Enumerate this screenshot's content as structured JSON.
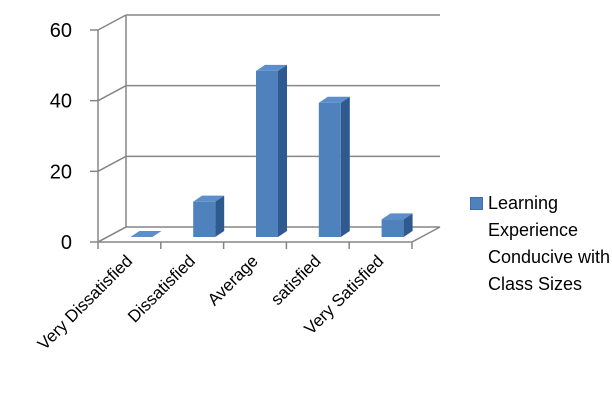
{
  "chart_data": {
    "type": "bar",
    "categories": [
      "Very Dissatisfied",
      "Dissatisfied",
      "Average",
      "satisfied",
      "Very Satisfied"
    ],
    "series": [
      {
        "name": "Learning Experience Conducive with Class Sizes",
        "values": [
          0,
          10,
          47,
          38,
          5
        ],
        "color": "#4F81BD"
      }
    ],
    "ylim": [
      0,
      60
    ],
    "yticks": [
      0,
      20,
      40,
      60
    ],
    "grid": true,
    "legend_position": "right",
    "style": "3d-column"
  }
}
